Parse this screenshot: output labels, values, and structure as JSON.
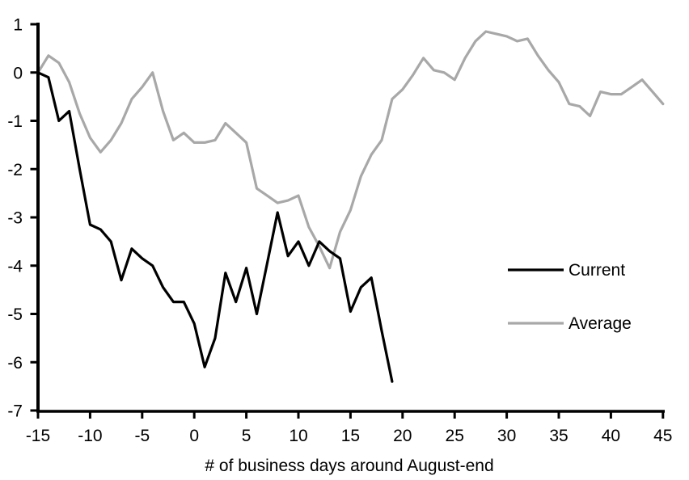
{
  "chart_data": {
    "type": "line",
    "title": "",
    "xlabel": "# of business days around August-end",
    "ylabel": "",
    "xlim": [
      -15,
      45
    ],
    "ylim": [
      -7,
      1
    ],
    "x_ticks": [
      -15,
      -10,
      -5,
      0,
      5,
      10,
      15,
      20,
      25,
      30,
      35,
      40,
      45
    ],
    "y_ticks": [
      1,
      0,
      -1,
      -2,
      -3,
      -4,
      -5,
      -6,
      -7
    ],
    "grid": false,
    "legend_position": "right-middle",
    "series": [
      {
        "name": "Current",
        "color": "#000000",
        "x": [
          -15,
          -14,
          -13,
          -12,
          -11,
          -10,
          -9,
          -8,
          -7,
          -6,
          -5,
          -4,
          -3,
          -2,
          -1,
          0,
          1,
          2,
          3,
          4,
          5,
          6,
          7,
          8,
          9,
          10,
          11,
          12,
          13,
          14,
          15,
          16,
          17,
          18,
          19
        ],
        "values": [
          0,
          -0.1,
          -1.0,
          -0.8,
          -2.0,
          -3.15,
          -3.25,
          -3.5,
          -4.3,
          -3.65,
          -3.85,
          -4.0,
          -4.45,
          -4.75,
          -4.75,
          -5.2,
          -6.1,
          -5.5,
          -4.15,
          -4.75,
          -4.05,
          -5.0,
          -3.95,
          -2.9,
          -3.8,
          -3.5,
          -4.0,
          -3.5,
          -3.7,
          -3.85,
          -4.95,
          -4.45,
          -4.25,
          -5.35,
          -6.4
        ]
      },
      {
        "name": "Average",
        "color": "#a8a8a8",
        "x": [
          -15,
          -14,
          -13,
          -12,
          -11,
          -10,
          -9,
          -8,
          -7,
          -6,
          -5,
          -4,
          -3,
          -2,
          -1,
          0,
          1,
          2,
          3,
          4,
          5,
          6,
          7,
          8,
          9,
          10,
          11,
          12,
          13,
          14,
          15,
          16,
          17,
          18,
          19,
          20,
          21,
          22,
          23,
          24,
          25,
          26,
          27,
          28,
          29,
          30,
          31,
          32,
          33,
          34,
          35,
          36,
          37,
          38,
          39,
          40,
          41,
          42,
          43,
          44,
          45
        ],
        "values": [
          0,
          0.35,
          0.2,
          -0.2,
          -0.85,
          -1.35,
          -1.65,
          -1.4,
          -1.05,
          -0.55,
          -0.3,
          0.0,
          -0.8,
          -1.4,
          -1.25,
          -1.45,
          -1.45,
          -1.4,
          -1.05,
          -1.25,
          -1.45,
          -2.4,
          -2.55,
          -2.7,
          -2.65,
          -2.55,
          -3.2,
          -3.6,
          -4.05,
          -3.3,
          -2.85,
          -2.15,
          -1.7,
          -1.4,
          -0.55,
          -0.35,
          -0.05,
          0.3,
          0.05,
          0.0,
          -0.15,
          0.3,
          0.65,
          0.85,
          0.8,
          0.75,
          0.65,
          0.7,
          0.35,
          0.05,
          -0.2,
          -0.65,
          -0.7,
          -0.9,
          -0.4,
          -0.45,
          -0.45,
          -0.3,
          -0.15,
          -0.4,
          -0.65
        ]
      }
    ]
  },
  "colors": {
    "current_line": "#000000",
    "average_line": "#a8a8a8",
    "axis": "#000000",
    "background": "#ffffff"
  }
}
